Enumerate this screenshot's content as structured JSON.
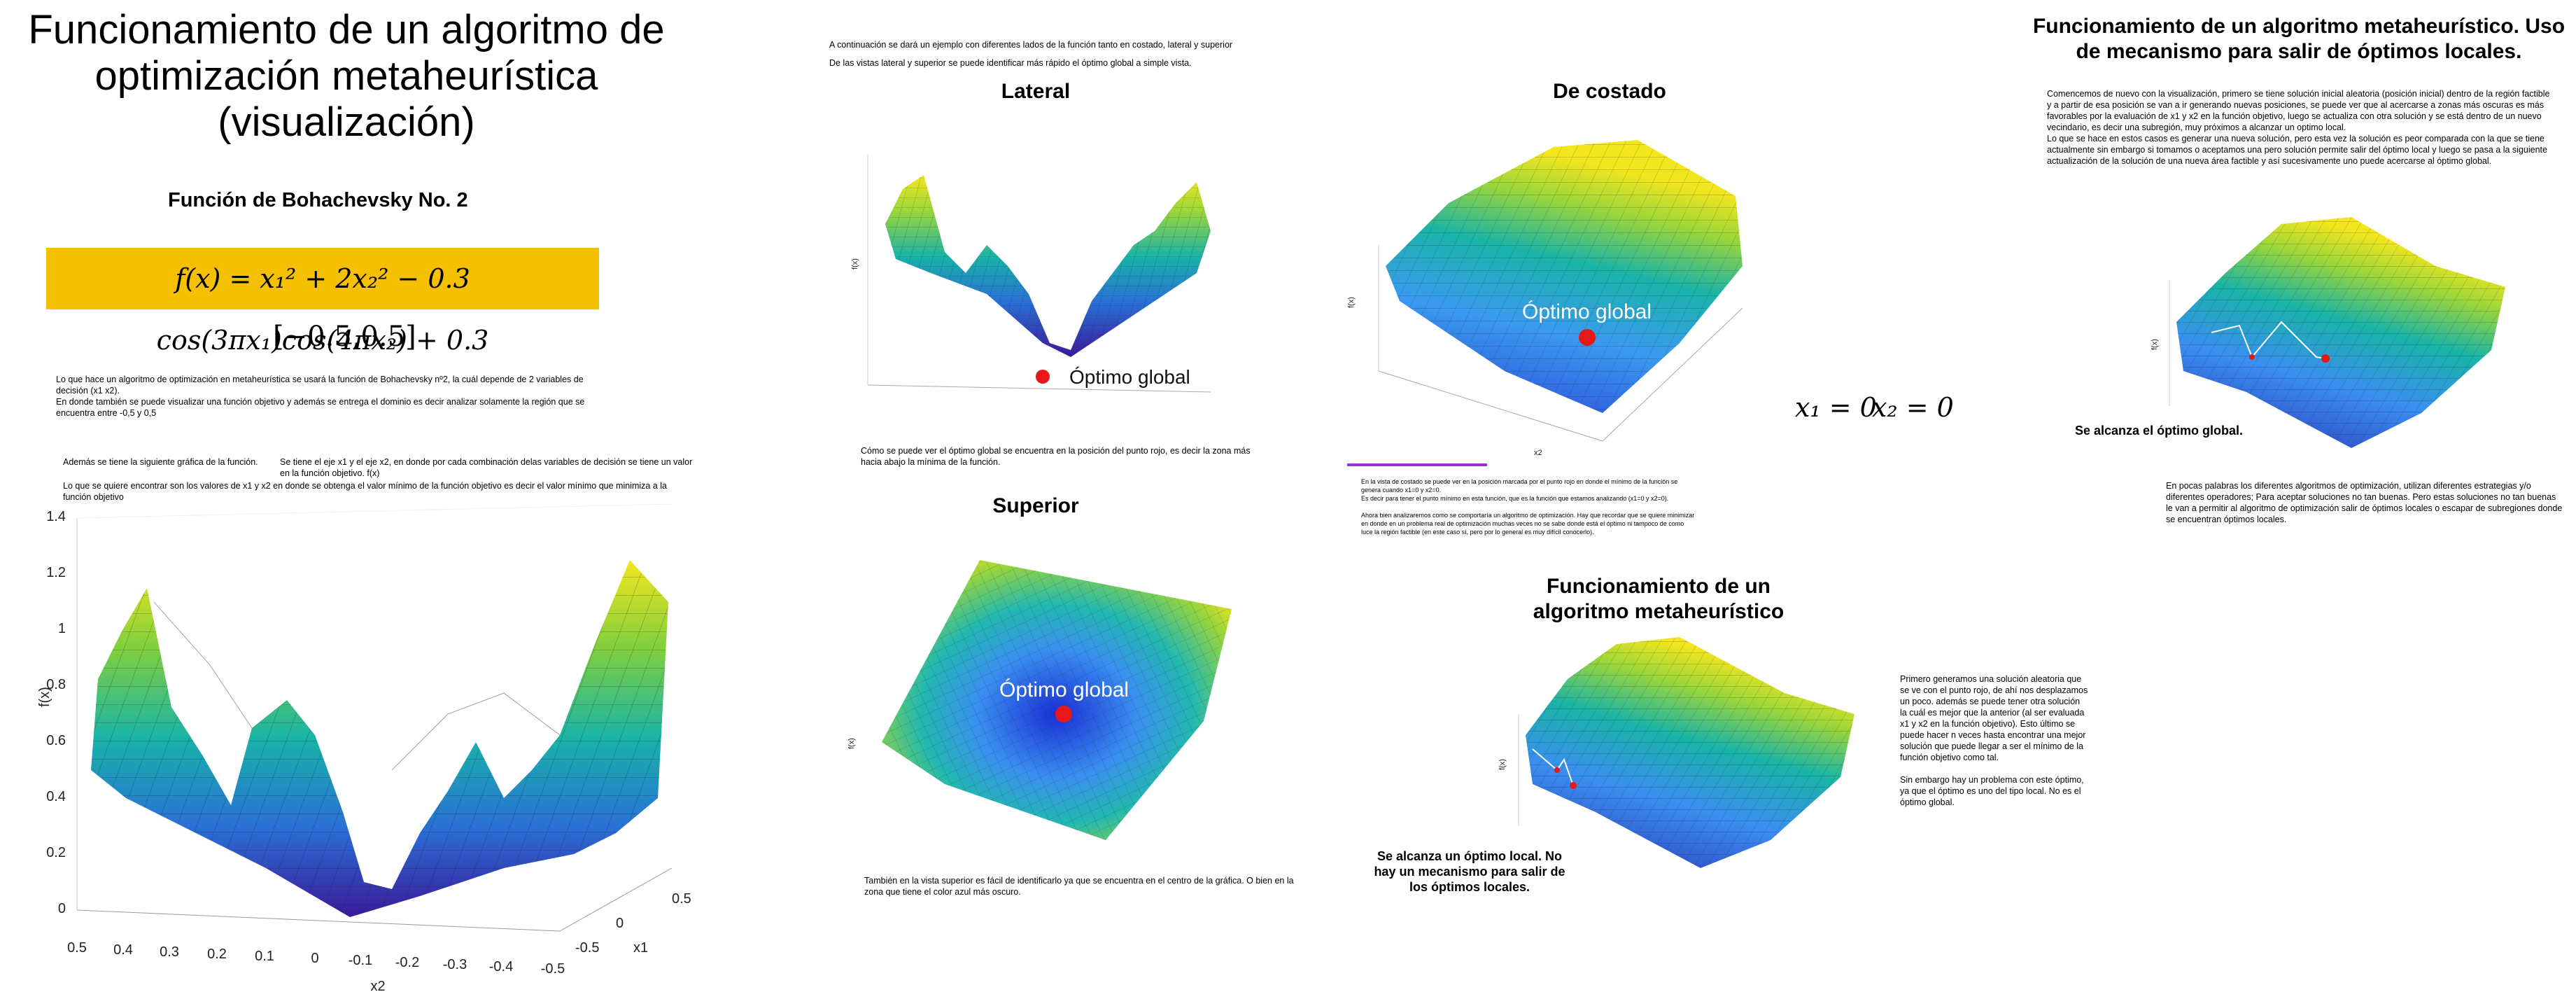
{
  "col1": {
    "title": "Funcionamiento de un algoritmo de optimización metaheurística (visualización)",
    "function_name": "Función de Bohachevsky No. 2",
    "formula": "f(x) = x₁² + 2x₂² − 0.3 cos(3πx₁)cos(4πx₂) + 0.3",
    "domain": "[−0.5,0.5]",
    "p1": "Lo que hace un algoritmo de optimización en metaheurística se usará la función de Bohachevsky nº2, la cuál depende de 2 variables de decisión (x1 x2).",
    "p2": "En donde también se puede visualizar una función objetivo y además se entrega el dominio es decir analizar solamente la región que se encuentra entre -0,5 y 0,5",
    "p3": "Además se tiene la siguiente gráfica de la función.",
    "p4": "Se tiene el eje x1 y el eje x2, en donde por cada combinación delas variables de decisión se tiene un valor en la función objetivo. f(x)",
    "p5": "Lo que se quiere encontrar son los valores de x1 y x2 en donde se obtenga el valor mínimo de la función objetivo es decir el valor mínimo que minimiza a la función objetivo",
    "plot": {
      "zlabel": "f(x)",
      "xlabel": "x2",
      "ylabel": "x1",
      "zticks": [
        "0",
        "0.2",
        "0.4",
        "0.6",
        "0.8",
        "1",
        "1.2",
        "1.4"
      ],
      "xticks": [
        "0.5",
        "0.4",
        "0.3",
        "0.2",
        "0.1",
        "0",
        "-0.1",
        "-0.2",
        "-0.3",
        "-0.4",
        "-0.5"
      ],
      "yticks": [
        "0.5",
        "0",
        "-0.5"
      ]
    }
  },
  "col2": {
    "intro1": "A continuación se dará un ejemplo con diferentes lados de la función tanto en costado, lateral y superior",
    "intro2": "De las vistas lateral y superior se puede identificar más rápido el óptimo global a simple vista.",
    "lateral_title": "Lateral",
    "lateral_label": "Óptimo global",
    "lateral_text": "Cómo se puede ver el óptimo global se encuentra en la posición del punto rojo, es decir la zona más hacia abajo la mínima de la función.",
    "superior_title": "Superior",
    "superior_label": "Óptimo global",
    "superior_text": "También en la vista superior es fácil de identificarlo ya que se encuentra en el centro de la gráfica. O bien en la zona que tiene el color azul más oscuro."
  },
  "col3": {
    "costado_title": "De costado",
    "costado_label": "Óptimo global",
    "eq1": "x₁ = 0",
    "eq2": "x₂ = 0",
    "costado_text1": "En la vista de costado se puede ver en la posición marcada por el punto rojo en donde el mínimo de la función se genera cuando x1=0 y x2=0.",
    "costado_text2": "Es decir para tener el punto mínimo en esta función, que es la función que estamos analizando (x1=0 y x2=0).",
    "costado_text3": "Ahora bien analizaremos como se comportaría un algoritmo de optimización. Hay que recordar que se quiere minimizar en donde en un problema real de optimización muchas veces no se sabe donde está el óptimo ni tampoco de como luce la región factible (en este caso sí, pero por lo general es muy difícil conocerlo).",
    "algo_title": "Funcionamiento de un algoritmo metaheurístico",
    "algo_caption": "Se alcanza un óptimo local. No hay un mecanismo para salir de los óptimos locales.",
    "algo_text1": "Primero generamos una solución aleatoria que se ve con el punto rojo, de ahí nos desplazamos un poco. además se puede tener otra solución la cuál es mejor que la anterior (al ser evaluada x1 y x2 en la función objetivo). Esto último se puede hacer n veces hasta encontrar una mejor solución que puede llegar a ser el mínimo de la función objetivo como tal.",
    "algo_text2": "Sin embargo hay un problema con este óptimo, ya que el óptimo es uno del tipo local. No es el óptimo global."
  },
  "col4": {
    "title": "Funcionamiento de un algoritmo metaheurístico. Uso de mecanismo para salir de óptimos locales.",
    "text1": "Comencemos de nuevo con la visualización, primero se tiene solución inicial aleatoria (posición inicial) dentro de la región factible y a partir de esa posición se van a ir generando nuevas posiciones, se puede ver que al acercarse a zonas más oscuras es más favorables por la evaluación de x1 y x2 en la función objetivo, luego se actualiza con otra solución y se está dentro de un nuevo vecindario, es decir una subregión, muy próximos a alcanzar un optimo local.",
    "text2": "Lo que se hace en estos casos es generar una nueva solución, pero esta vez la solución es peor comparada con la que se tiene actualmente sin embargo si tomamos o aceptamos una pero solución permite salir del óptimo local y luego se pasa a la siguiente actualización de la solución de una nueva área factible y así sucesivamente uno puede acercarse al óptimo global.",
    "caption": "Se alcanza el óptimo global.",
    "text3": "En pocas palabras los diferentes algoritmos de optimización, utilizan diferentes estrategias y/o diferentes operadores; Para aceptar soluciones no tan buenas. Pero estas soluciones no tan buenas le van a permitir al algoritmo de optimización salir de óptimos locales o escapar de subregiones donde se encuentran óptimos locales."
  },
  "colors": {
    "formula_bg": "#f5c000",
    "optimum": "#e81818",
    "accent_line": "#9a2ee0"
  }
}
